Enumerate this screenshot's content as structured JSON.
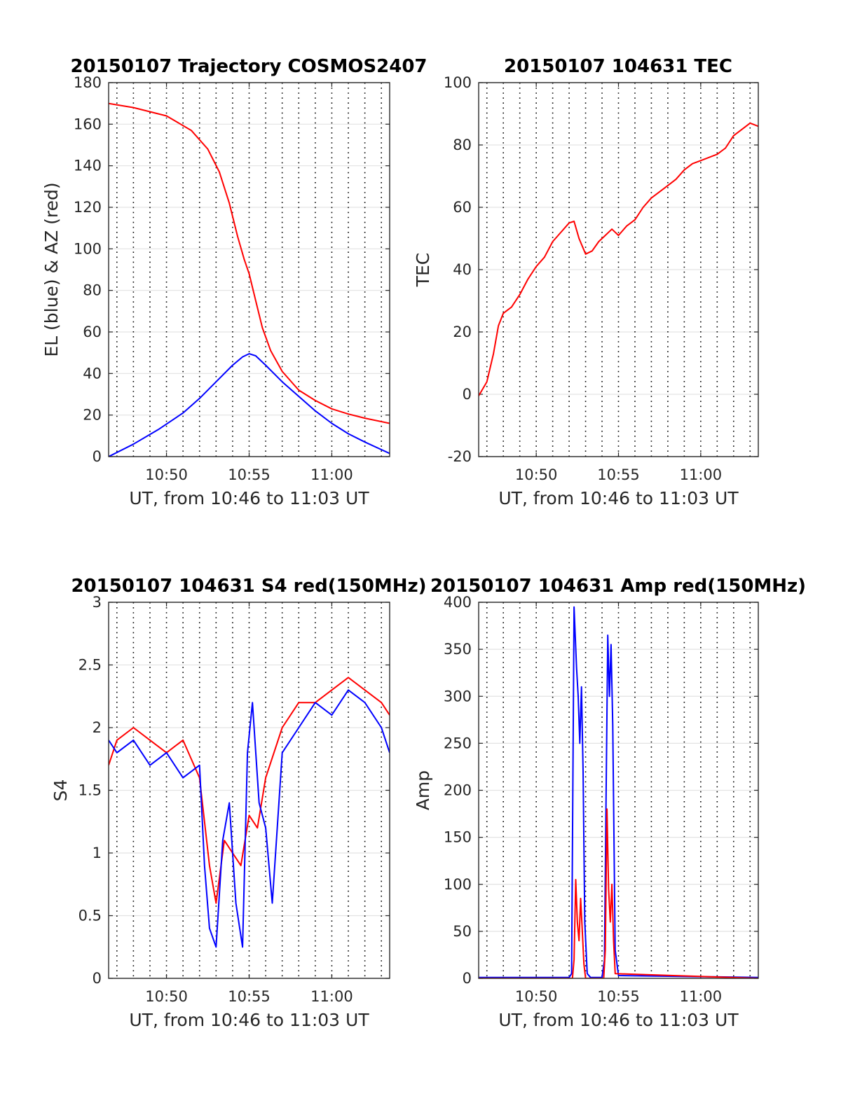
{
  "chart_data": [
    {
      "type": "line",
      "title": "20150107 Trajectory COSMOS2407",
      "xlabel": "UT, from 10:46 to 11:03 UT",
      "ylabel": "EL (blue) & AZ (red)",
      "xlim_minutes": [
        646.5,
        663.5
      ],
      "x_ticks": [
        "10:50",
        "10:55",
        "11:00"
      ],
      "ylim": [
        0,
        180
      ],
      "y_ticks": [
        "0",
        "20",
        "40",
        "60",
        "80",
        "100",
        "120",
        "140",
        "160",
        "180"
      ],
      "grid": "dotted vertical every minute, light horizontal at y-ticks",
      "series": [
        {
          "color": "#ff0000",
          "x": [
            646.5,
            648,
            650,
            651.5,
            652.5,
            653.2,
            653.8,
            654.3,
            654.7,
            655.0,
            655.4,
            655.8,
            656.3,
            657,
            658,
            659,
            660,
            661,
            662,
            663.5
          ],
          "values": [
            170,
            168,
            164,
            157,
            148,
            137,
            122,
            106,
            95,
            88,
            75,
            62,
            51,
            41,
            32,
            27,
            23,
            20.5,
            18.5,
            16
          ]
        },
        {
          "color": "#0000ff",
          "x": [
            646.5,
            648,
            649.5,
            651,
            652,
            653,
            654,
            654.6,
            655.0,
            655.4,
            656,
            657,
            658,
            659,
            660,
            661,
            662,
            663.5
          ],
          "values": [
            0,
            6,
            13,
            21,
            28,
            36,
            44,
            48,
            49.5,
            48.5,
            44,
            36,
            29,
            22,
            16,
            11,
            7,
            1.5
          ]
        }
      ]
    },
    {
      "type": "line",
      "title": "20150107 104631 TEC",
      "xlabel": "UT, from 10:46 to 11:03 UT",
      "ylabel": "TEC",
      "xlim_minutes": [
        646.5,
        663.5
      ],
      "x_ticks": [
        "10:50",
        "10:55",
        "11:00"
      ],
      "ylim": [
        -20,
        100
      ],
      "y_ticks": [
        "-20",
        "0",
        "20",
        "40",
        "60",
        "80",
        "100"
      ],
      "grid": "dotted vertical every minute, light horizontal at y-ticks",
      "series": [
        {
          "color": "#ff0000",
          "x": [
            646.5,
            647,
            647.4,
            647.7,
            648,
            648.5,
            649,
            649.5,
            650,
            650.5,
            651,
            651.5,
            652,
            652.3,
            652.6,
            653,
            653.4,
            653.8,
            654.2,
            654.6,
            655,
            655.5,
            656,
            656.5,
            657,
            657.5,
            658,
            658.5,
            659,
            659.5,
            660,
            660.5,
            661,
            661.5,
            662,
            662.5,
            663,
            663.5
          ],
          "values": [
            -0.5,
            4,
            13,
            22,
            26,
            28,
            32,
            37,
            41,
            44,
            49,
            52,
            55,
            55.5,
            50,
            45,
            46,
            49,
            51,
            53,
            51,
            54,
            56,
            60,
            63,
            65,
            67,
            69,
            72,
            74,
            75,
            76,
            77,
            79,
            83,
            85,
            87,
            86
          ]
        }
      ]
    },
    {
      "type": "line",
      "title": "20150107 104631 S4 red(150MHz)",
      "xlabel": "UT, from 10:46 to 11:03 UT",
      "ylabel": "S4",
      "xlim_minutes": [
        646.5,
        663.5
      ],
      "x_ticks": [
        "10:50",
        "10:55",
        "11:00"
      ],
      "ylim": [
        0,
        3
      ],
      "y_ticks": [
        "0",
        "0.5",
        "1",
        "1.5",
        "2",
        "2.5",
        "3"
      ],
      "grid": "dotted vertical every minute, light horizontal at y-ticks",
      "series": [
        {
          "color": "#ff0000",
          "x": [
            646.5,
            647,
            648,
            649,
            650,
            651,
            652,
            652.6,
            653,
            653.5,
            654,
            654.5,
            655,
            655.5,
            656,
            657,
            658,
            659,
            660,
            661,
            662,
            663,
            663.5
          ],
          "values": [
            1.7,
            1.9,
            2.0,
            1.9,
            1.8,
            1.9,
            1.6,
            0.9,
            0.6,
            1.1,
            1.0,
            0.9,
            1.3,
            1.2,
            1.6,
            2.0,
            2.2,
            2.2,
            2.3,
            2.4,
            2.3,
            2.2,
            2.1
          ]
        },
        {
          "color": "#0000ff",
          "x": [
            646.5,
            647,
            648,
            649,
            650,
            651,
            652,
            652.3,
            652.6,
            653,
            653.4,
            653.8,
            654.2,
            654.6,
            654.9,
            655.2,
            655.6,
            656,
            656.4,
            657,
            658,
            659,
            660,
            661,
            662,
            663,
            663.5
          ],
          "values": [
            1.9,
            1.8,
            1.9,
            1.7,
            1.8,
            1.6,
            1.7,
            0.9,
            0.4,
            0.25,
            1.1,
            1.4,
            0.6,
            0.25,
            1.8,
            2.2,
            1.4,
            1.2,
            0.6,
            1.8,
            2.0,
            2.2,
            2.1,
            2.3,
            2.2,
            2.0,
            1.8
          ]
        }
      ]
    },
    {
      "type": "line",
      "title": "20150107 104631 Amp red(150MHz)",
      "xlabel": "UT, from 10:46 to 11:03 UT",
      "ylabel": "Amp",
      "xlim_minutes": [
        646.5,
        663.5
      ],
      "x_ticks": [
        "10:50",
        "10:55",
        "11:00"
      ],
      "ylim": [
        0,
        400
      ],
      "y_ticks": [
        "0",
        "50",
        "100",
        "150",
        "200",
        "250",
        "300",
        "350",
        "400"
      ],
      "grid": "dotted vertical every minute, light horizontal at y-ticks",
      "series": [
        {
          "color": "#0000ff",
          "x": [
            646.5,
            652.0,
            652.15,
            652.3,
            652.45,
            652.55,
            652.65,
            652.75,
            652.85,
            652.95,
            653.1,
            653.3,
            654.0,
            654.15,
            654.25,
            654.35,
            654.45,
            654.55,
            654.65,
            654.8,
            655.0,
            663.5
          ],
          "values": [
            1,
            1,
            5,
            395,
            330,
            300,
            250,
            310,
            220,
            60,
            5,
            1,
            1,
            20,
            200,
            365,
            300,
            355,
            270,
            30,
            3,
            1
          ]
        },
        {
          "color": "#ff0000",
          "x": [
            646.5,
            652.2,
            652.3,
            652.4,
            652.5,
            652.6,
            652.7,
            652.8,
            652.9,
            653.0,
            654.1,
            654.2,
            654.3,
            654.4,
            654.5,
            654.6,
            654.7,
            654.8,
            663.5
          ],
          "values": [
            0,
            0,
            20,
            105,
            60,
            40,
            85,
            50,
            15,
            0,
            0,
            30,
            180,
            95,
            60,
            100,
            40,
            5,
            0
          ]
        }
      ]
    }
  ]
}
